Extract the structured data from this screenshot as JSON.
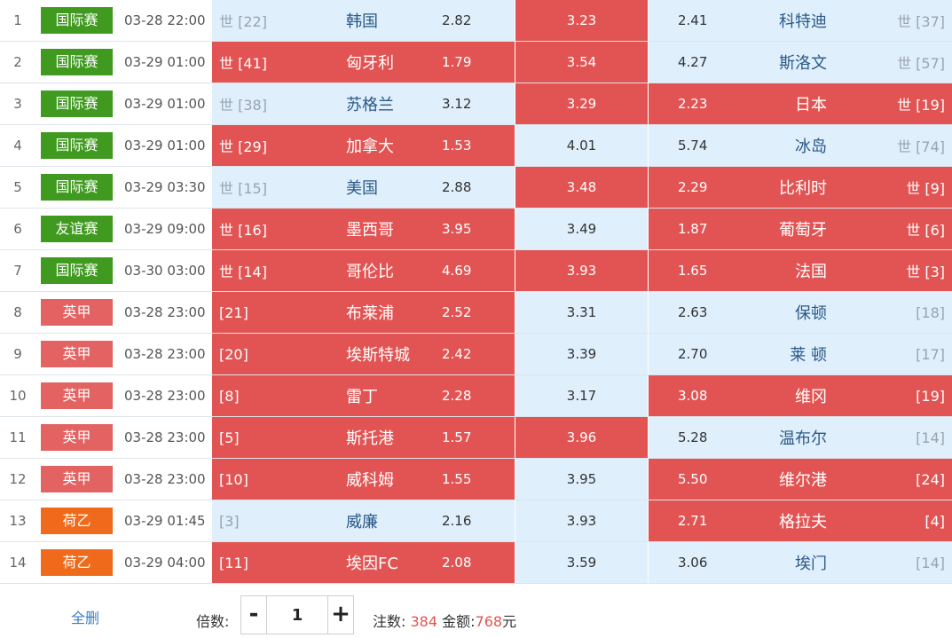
{
  "colors": {
    "highlight": "#e25453",
    "light": "#dfeffb",
    "league_green": "#3f9a1f",
    "league_pink": "#e36262",
    "league_orange": "#ef6a1a"
  },
  "matches": [
    {
      "num": "1",
      "league": "国际赛",
      "league_color": "#3f9a1f",
      "time": "03-28 22:00",
      "home_rank": "世 [22]",
      "home": "韩国",
      "home_odds": "2.82",
      "draw_odds": "3.23",
      "away_odds": "2.41",
      "away": "科特迪",
      "away_rank": "世 [37]",
      "hl": [
        false,
        true,
        false
      ]
    },
    {
      "num": "2",
      "league": "国际赛",
      "league_color": "#3f9a1f",
      "time": "03-29 01:00",
      "home_rank": "世 [41]",
      "home": "匈牙利",
      "home_odds": "1.79",
      "draw_odds": "3.54",
      "away_odds": "4.27",
      "away": "斯洛文",
      "away_rank": "世 [57]",
      "hl": [
        true,
        true,
        false
      ]
    },
    {
      "num": "3",
      "league": "国际赛",
      "league_color": "#3f9a1f",
      "time": "03-29 01:00",
      "home_rank": "世 [38]",
      "home": "苏格兰",
      "home_odds": "3.12",
      "draw_odds": "3.29",
      "away_odds": "2.23",
      "away": "日本",
      "away_rank": "世 [19]",
      "hl": [
        false,
        true,
        true
      ]
    },
    {
      "num": "4",
      "league": "国际赛",
      "league_color": "#3f9a1f",
      "time": "03-29 01:00",
      "home_rank": "世 [29]",
      "home": "加拿大",
      "home_odds": "1.53",
      "draw_odds": "4.01",
      "away_odds": "5.74",
      "away": "冰岛",
      "away_rank": "世 [74]",
      "hl": [
        true,
        false,
        false
      ]
    },
    {
      "num": "5",
      "league": "国际赛",
      "league_color": "#3f9a1f",
      "time": "03-29 03:30",
      "home_rank": "世 [15]",
      "home": "美国",
      "home_odds": "2.88",
      "draw_odds": "3.48",
      "away_odds": "2.29",
      "away": "比利时",
      "away_rank": "世 [9]",
      "hl": [
        false,
        true,
        true
      ]
    },
    {
      "num": "6",
      "league": "友谊赛",
      "league_color": "#3f9a1f",
      "time": "03-29 09:00",
      "home_rank": "世 [16]",
      "home": "墨西哥",
      "home_odds": "3.95",
      "draw_odds": "3.49",
      "away_odds": "1.87",
      "away": "葡萄牙",
      "away_rank": "世 [6]",
      "hl": [
        true,
        false,
        true
      ]
    },
    {
      "num": "7",
      "league": "国际赛",
      "league_color": "#3f9a1f",
      "time": "03-30 03:00",
      "home_rank": "世 [14]",
      "home": "哥伦比",
      "home_odds": "4.69",
      "draw_odds": "3.93",
      "away_odds": "1.65",
      "away": "法国",
      "away_rank": "世 [3]",
      "hl": [
        true,
        true,
        true
      ]
    },
    {
      "num": "8",
      "league": "英甲",
      "league_color": "#e36262",
      "time": "03-28 23:00",
      "home_rank": "[21]",
      "home": "布莱浦",
      "home_odds": "2.52",
      "draw_odds": "3.31",
      "away_odds": "2.63",
      "away": "保顿",
      "away_rank": "[18]",
      "hl": [
        true,
        false,
        false
      ]
    },
    {
      "num": "9",
      "league": "英甲",
      "league_color": "#e36262",
      "time": "03-28 23:00",
      "home_rank": "[20]",
      "home": "埃斯特城",
      "home_odds": "2.42",
      "draw_odds": "3.39",
      "away_odds": "2.70",
      "away": "莱 顿",
      "away_rank": "[17]",
      "hl": [
        true,
        false,
        false
      ]
    },
    {
      "num": "10",
      "league": "英甲",
      "league_color": "#e36262",
      "time": "03-28 23:00",
      "home_rank": "[8]",
      "home": "雷丁",
      "home_odds": "2.28",
      "draw_odds": "3.17",
      "away_odds": "3.08",
      "away": "维冈",
      "away_rank": "[19]",
      "hl": [
        true,
        false,
        true
      ]
    },
    {
      "num": "11",
      "league": "英甲",
      "league_color": "#e36262",
      "time": "03-28 23:00",
      "home_rank": "[5]",
      "home": "斯托港",
      "home_odds": "1.57",
      "draw_odds": "3.96",
      "away_odds": "5.28",
      "away": "温布尔",
      "away_rank": "[14]",
      "hl": [
        true,
        true,
        false
      ]
    },
    {
      "num": "12",
      "league": "英甲",
      "league_color": "#e36262",
      "time": "03-28 23:00",
      "home_rank": "[10]",
      "home": "威科姆",
      "home_odds": "1.55",
      "draw_odds": "3.95",
      "away_odds": "5.50",
      "away": "维尔港",
      "away_rank": "[24]",
      "hl": [
        true,
        false,
        true
      ]
    },
    {
      "num": "13",
      "league": "荷乙",
      "league_color": "#ef6a1a",
      "time": "03-29 01:45",
      "home_rank": "[3]",
      "home": "威廉",
      "home_odds": "2.16",
      "draw_odds": "3.93",
      "away_odds": "2.71",
      "away": "格拉夫",
      "away_rank": "[4]",
      "hl": [
        false,
        false,
        true
      ]
    },
    {
      "num": "14",
      "league": "荷乙",
      "league_color": "#ef6a1a",
      "time": "03-29 04:00",
      "home_rank": "[11]",
      "home": "埃因FC",
      "home_odds": "2.08",
      "draw_odds": "3.59",
      "away_odds": "3.06",
      "away": "埃门",
      "away_rank": "[14]",
      "hl": [
        true,
        false,
        false
      ]
    }
  ],
  "footer": {
    "clear_label": "全删",
    "multiplier_label": "倍数:",
    "minus_label": "-",
    "plus_label": "+",
    "multiplier_value": "1",
    "bets_label": "注数:",
    "bets_value": "384",
    "amount_label": "金额:",
    "amount_value": "768",
    "amount_unit": "元"
  }
}
